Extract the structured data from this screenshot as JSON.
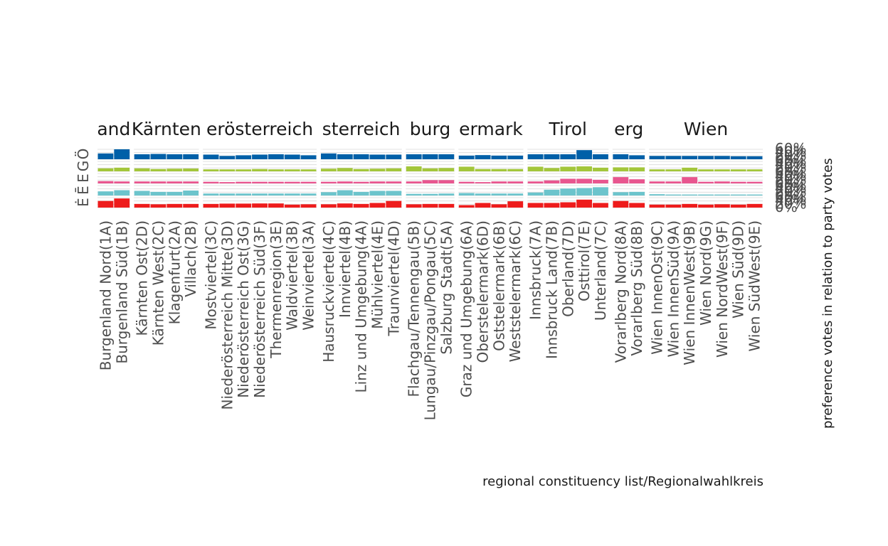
{
  "chart_data": {
    "type": "bar",
    "xlabel": "regional constituency list/Regionalwahlkreis",
    "ylabel": "preference votes in relation to party votes",
    "ylim": [
      0,
      0.6
    ],
    "y_ticks": [
      "0%",
      "20%",
      "40%",
      "60%"
    ],
    "party_colors": [
      "#0060a8",
      "#a3c63a",
      "#e8568f",
      "#6cc4cc",
      "#ee1c1c"
    ],
    "row_labels": [
      "Ö",
      "G",
      "E",
      "Ē",
      "Ė"
    ],
    "facets": [
      {
        "label": "and",
        "constituencies": [
          "Burgenland Nord(1A)",
          "Burgenland Süd(1B)"
        ],
        "values": [
          [
            0.35,
            0.6
          ],
          [
            0.18,
            0.22
          ],
          [
            0.14,
            0.12
          ],
          [
            0.25,
            0.32
          ],
          [
            0.4,
            0.55
          ]
        ]
      },
      {
        "label": "Kärnten",
        "constituencies": [
          "Kärnten Ost(2D)",
          "Kärnten West(2C)",
          "Klagenfurt(2A)",
          "Villach(2B)"
        ],
        "values": [
          [
            0.3,
            0.32,
            0.3,
            0.3
          ],
          [
            0.18,
            0.14,
            0.16,
            0.17
          ],
          [
            0.12,
            0.12,
            0.12,
            0.12
          ],
          [
            0.28,
            0.22,
            0.22,
            0.3
          ],
          [
            0.22,
            0.2,
            0.22,
            0.22
          ]
        ]
      },
      {
        "label": "erösterreich",
        "constituencies": [
          "Mostviertel(3C)",
          "Niederösterreich Mitte(3D)",
          "Niederösterreich Ost(3G)",
          "Niederösterreich Süd(3F)",
          "Thermenregion(3E)",
          "Waldviertel(3B)",
          "Weinviertel(3A)"
        ],
        "values": [
          [
            0.28,
            0.2,
            0.24,
            0.28,
            0.3,
            0.28,
            0.24
          ],
          [
            0.12,
            0.12,
            0.12,
            0.14,
            0.12,
            0.12,
            0.12
          ],
          [
            0.1,
            0.08,
            0.1,
            0.1,
            0.1,
            0.1,
            0.1
          ],
          [
            0.12,
            0.12,
            0.12,
            0.12,
            0.12,
            0.12,
            0.12
          ],
          [
            0.22,
            0.24,
            0.24,
            0.25,
            0.25,
            0.18,
            0.2
          ]
        ]
      },
      {
        "label": "sterreich",
        "constituencies": [
          "Hausruckviertel(4C)",
          "Innviertel(4B)",
          "Linz und Umgebung(4A)",
          "Mühlviertel(4E)",
          "Traunviertel(4D)"
        ],
        "values": [
          [
            0.35,
            0.3,
            0.3,
            0.28,
            0.28
          ],
          [
            0.16,
            0.2,
            0.14,
            0.16,
            0.18
          ],
          [
            0.1,
            0.12,
            0.1,
            0.12,
            0.12
          ],
          [
            0.2,
            0.32,
            0.22,
            0.28,
            0.28
          ],
          [
            0.2,
            0.25,
            0.22,
            0.28,
            0.4
          ]
        ]
      },
      {
        "label": "burg",
        "constituencies": [
          "Flachgau/Tennengau(5B)",
          "Lungau/Pinzgau/Pongau(5C)",
          "Salzburg Stadt(5A)"
        ],
        "values": [
          [
            0.3,
            0.3,
            0.3
          ],
          [
            0.3,
            0.18,
            0.2
          ],
          [
            0.12,
            0.2,
            0.2
          ],
          [
            0.1,
            0.1,
            0.12
          ],
          [
            0.2,
            0.22,
            0.22
          ]
        ]
      },
      {
        "label": "ermark",
        "constituencies": [
          "Graz und Umgebung(6A)",
          "Oberstelermark(6D)",
          "Oststelermark(6B)",
          "Weststelermark(6C)"
        ],
        "values": [
          [
            0.22,
            0.25,
            0.22,
            0.22
          ],
          [
            0.28,
            0.14,
            0.14,
            0.14
          ],
          [
            0.1,
            0.08,
            0.12,
            0.12
          ],
          [
            0.15,
            0.12,
            0.12,
            0.12
          ],
          [
            0.15,
            0.28,
            0.2,
            0.38
          ]
        ]
      },
      {
        "label": "Tirol",
        "constituencies": [
          "Innsbruck(7A)",
          "Innsbruck Land(7B)",
          "Oberland(7D)",
          "Osttirol(7E)",
          "Unterland(7C)"
        ],
        "values": [
          [
            0.3,
            0.3,
            0.3,
            0.55,
            0.3
          ],
          [
            0.28,
            0.2,
            0.28,
            0.3,
            0.22
          ],
          [
            0.12,
            0.18,
            0.28,
            0.28,
            0.22
          ],
          [
            0.18,
            0.35,
            0.42,
            0.45,
            0.5
          ],
          [
            0.28,
            0.28,
            0.32,
            0.48,
            0.28
          ]
        ]
      },
      {
        "label": "erg",
        "constituencies": [
          "Vorarlberg Nord(8A)",
          "Vorarlberg Süd(8B)"
        ],
        "values": [
          [
            0.3,
            0.24
          ],
          [
            0.24,
            0.24
          ],
          [
            0.38,
            0.25
          ],
          [
            0.2,
            0.22
          ],
          [
            0.4,
            0.28
          ]
        ]
      },
      {
        "label": "Wien",
        "constituencies": [
          "Wien InnenOst(9C)",
          "Wien InnenSüd(9A)",
          "Wien InnenWest(9B)",
          "Wien Nord(9G)",
          "Wien NordWest(9F)",
          "Wien Süd(9D)",
          "Wien SüdWest(9E)"
        ],
        "values": [
          [
            0.2,
            0.2,
            0.2,
            0.2,
            0.2,
            0.18,
            0.18
          ],
          [
            0.12,
            0.12,
            0.22,
            0.12,
            0.12,
            0.12,
            0.12
          ],
          [
            0.12,
            0.12,
            0.38,
            0.1,
            0.12,
            0.1,
            0.1
          ],
          [
            0.08,
            0.06,
            0.06,
            0.06,
            0.06,
            0.06,
            0.06
          ],
          [
            0.18,
            0.18,
            0.22,
            0.18,
            0.2,
            0.18,
            0.22
          ]
        ]
      }
    ]
  }
}
